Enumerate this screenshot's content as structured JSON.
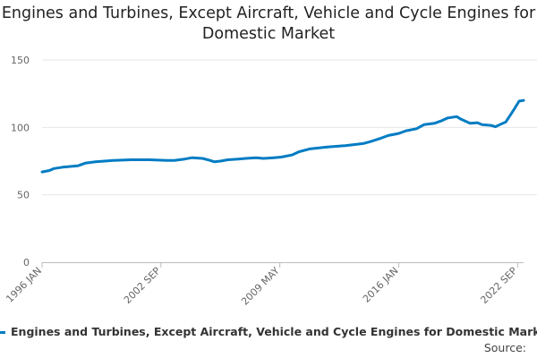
{
  "colors": {
    "series": "#007cc3",
    "grid": "#e6e6e6",
    "axis": "#bbbbbb"
  },
  "chart_data": {
    "type": "line",
    "title": "Engines and Turbines, Except Aircraft, Vehicle and Cycle Engines for Domestic Market",
    "xlabel": "",
    "ylabel": "",
    "x_type": "date",
    "x_range": [
      "1996-01",
      "2023-01"
    ],
    "ylim": [
      0,
      150
    ],
    "yticks": [
      0,
      50,
      100,
      150
    ],
    "xticks": [
      {
        "date": "1996-01",
        "label": "1996 JAN"
      },
      {
        "date": "2002-09",
        "label": "2002 SEP"
      },
      {
        "date": "2009-05",
        "label": "2009 MAY"
      },
      {
        "date": "2016-01",
        "label": "2016 JAN"
      },
      {
        "date": "2022-09",
        "label": "2022 SEP"
      }
    ],
    "grid": true,
    "legend_position": "bottom",
    "series": [
      {
        "name": "Engines and Turbines, Except Aircraft, Vehicle and Cycle Engines for Domestic Market",
        "points": [
          [
            "1996-01",
            67
          ],
          [
            "1996-06",
            68
          ],
          [
            "1996-09",
            69.5
          ],
          [
            "1997-03",
            70.5
          ],
          [
            "1998-01",
            71.5
          ],
          [
            "1998-06",
            73.5
          ],
          [
            "1999-01",
            74.5
          ],
          [
            "2000-01",
            75.5
          ],
          [
            "2001-01",
            76
          ],
          [
            "2002-01",
            76
          ],
          [
            "2003-01",
            75.5
          ],
          [
            "2003-06",
            75.5
          ],
          [
            "2004-01",
            76.5
          ],
          [
            "2004-06",
            77.5
          ],
          [
            "2005-01",
            77
          ],
          [
            "2005-06",
            75.5
          ],
          [
            "2005-09",
            74.5
          ],
          [
            "2006-01",
            75
          ],
          [
            "2006-06",
            76
          ],
          [
            "2007-01",
            76.5
          ],
          [
            "2007-06",
            77
          ],
          [
            "2008-01",
            77.5
          ],
          [
            "2008-06",
            77
          ],
          [
            "2009-01",
            77.5
          ],
          [
            "2009-06",
            78
          ],
          [
            "2010-01",
            79.5
          ],
          [
            "2010-06",
            82
          ],
          [
            "2011-01",
            84
          ],
          [
            "2012-01",
            85.5
          ],
          [
            "2013-01",
            86.5
          ],
          [
            "2014-01",
            88
          ],
          [
            "2014-06",
            89.5
          ],
          [
            "2015-01",
            92
          ],
          [
            "2015-06",
            94
          ],
          [
            "2016-01",
            95.5
          ],
          [
            "2016-06",
            97.5
          ],
          [
            "2017-01",
            99
          ],
          [
            "2017-06",
            102
          ],
          [
            "2018-01",
            103
          ],
          [
            "2018-06",
            105
          ],
          [
            "2018-10",
            107
          ],
          [
            "2019-04",
            108
          ],
          [
            "2019-07",
            106
          ],
          [
            "2020-01",
            103
          ],
          [
            "2020-06",
            103.5
          ],
          [
            "2020-09",
            102
          ],
          [
            "2021-03",
            101.5
          ],
          [
            "2021-06",
            100.5
          ],
          [
            "2021-09",
            102
          ],
          [
            "2022-01",
            104
          ],
          [
            "2022-04",
            109
          ],
          [
            "2022-07",
            114
          ],
          [
            "2022-10",
            119.5
          ],
          [
            "2023-01",
            120
          ]
        ]
      }
    ]
  },
  "legend": {
    "label": "Engines and Turbines, Except Aircraft, Vehicle and Cycle Engines for Domestic Market"
  },
  "source_label": "Source:"
}
